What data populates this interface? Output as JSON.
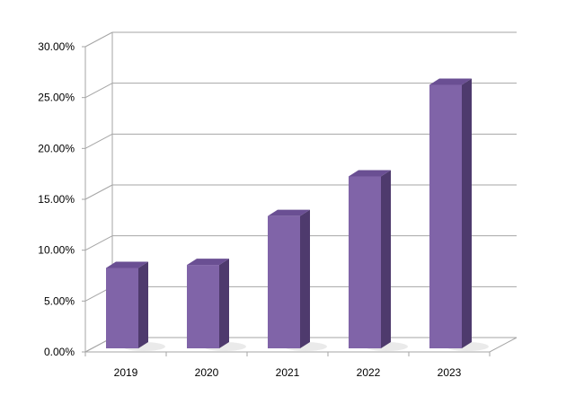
{
  "chart_data": {
    "type": "bar",
    "categories": [
      "2019",
      "2020",
      "2021",
      "2022",
      "2023"
    ],
    "values": [
      7.9,
      8.2,
      13.0,
      16.9,
      25.9
    ],
    "value_format": "percent",
    "ylim": [
      0,
      30
    ],
    "yticks": [
      0,
      5,
      10,
      15,
      20,
      25,
      30
    ],
    "ytick_labels": [
      "0.00%",
      "5.00%",
      "10.00%",
      "15.00%",
      "20.00%",
      "25.00%",
      "30.00%"
    ],
    "title": "",
    "xlabel": "",
    "ylabel": "",
    "grid": true,
    "legend": "none",
    "style": "3d-column",
    "colors": {
      "bar_front": "#8064A8",
      "bar_top": "#6A4F93",
      "bar_side": "#4E3A6D",
      "grid": "#A6A6A6",
      "axis": "#A6A6A6"
    }
  }
}
